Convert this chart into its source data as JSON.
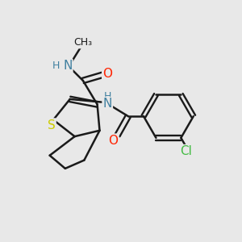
{
  "background_color": "#e8e8e8",
  "bond_color": "#1a1a1a",
  "atom_colors": {
    "N": "#4080a0",
    "O": "#ff2200",
    "S": "#cccc00",
    "Cl": "#44bb44",
    "H": "#4080a0",
    "C": "#1a1a1a"
  },
  "figsize": [
    3.0,
    3.0
  ],
  "dpi": 100
}
